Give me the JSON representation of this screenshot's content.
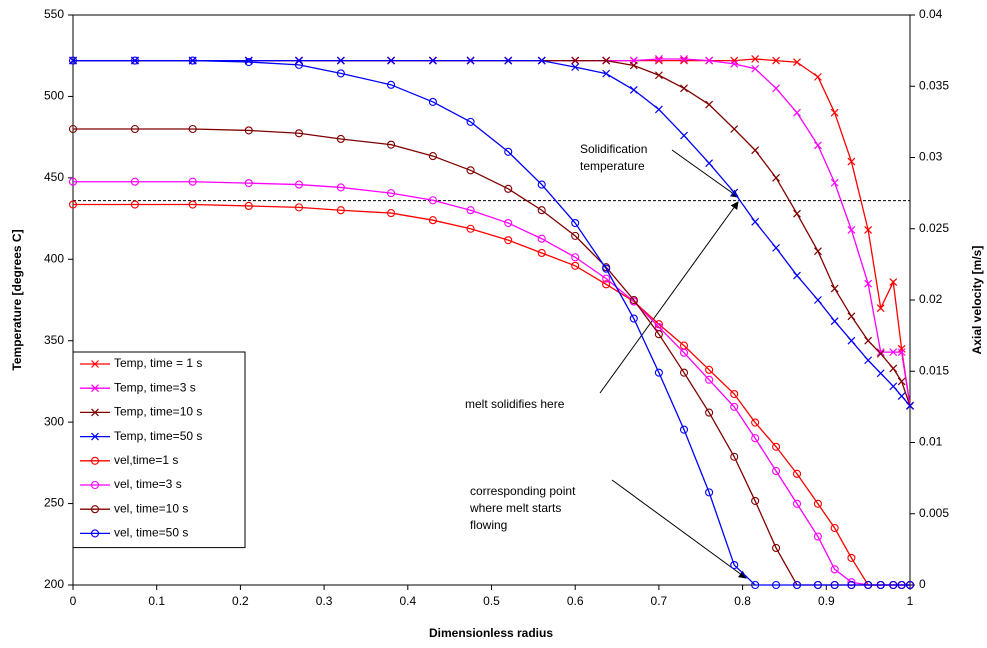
{
  "chart_data": {
    "type": "line",
    "xlabel": "Dimensionless radius",
    "ylabel": "Temperature [degrees C]",
    "y2label": "Axial velocity [m/s]",
    "x": [
      0,
      0.074,
      0.143,
      0.21,
      0.27,
      0.32,
      0.38,
      0.43,
      0.475,
      0.52,
      0.56,
      0.6,
      0.637,
      0.67,
      0.7,
      0.73,
      0.76,
      0.79,
      0.815,
      0.84,
      0.865,
      0.89,
      0.91,
      0.93,
      0.95,
      0.965,
      0.98,
      0.99,
      1.0
    ],
    "xlim": [
      0,
      1
    ],
    "xticks": [
      0,
      0.1,
      0.2,
      0.3,
      0.4,
      0.5,
      0.6,
      0.7,
      0.8,
      0.9,
      1
    ],
    "ylim": [
      200,
      550
    ],
    "yticks": [
      200,
      250,
      300,
      350,
      400,
      450,
      500,
      550
    ],
    "y2lim": [
      0,
      0.04
    ],
    "y2ticks": [
      0,
      0.005,
      0.01,
      0.015,
      0.02,
      0.025,
      0.03,
      0.035,
      0.04
    ],
    "solidification_temperature": 436,
    "series": [
      {
        "name": "Temp, time = 1 s",
        "color": "#ff0000",
        "marker": "x",
        "values": [
          522,
          522,
          522,
          522,
          522,
          522,
          522,
          522,
          522,
          522,
          522,
          522,
          522,
          522,
          522,
          522,
          522,
          522,
          523,
          522,
          521,
          512,
          490,
          460,
          418,
          370,
          386,
          345,
          310
        ]
      },
      {
        "name": "Temp, time=3 s",
        "color": "#ff00ff",
        "marker": "x",
        "values": [
          522,
          522,
          522,
          522,
          522,
          522,
          522,
          522,
          522,
          522,
          522,
          522,
          522,
          522,
          523,
          523,
          522,
          520,
          517,
          505,
          490,
          470,
          447,
          418,
          385,
          343,
          343,
          343,
          310
        ]
      },
      {
        "name": "Temp, time=10 s",
        "color": "#800000",
        "marker": "x",
        "values": [
          522,
          522,
          522,
          522,
          522,
          522,
          522,
          522,
          522,
          522,
          522,
          522,
          522,
          519,
          513,
          505,
          495,
          480,
          467,
          450,
          428,
          405,
          382,
          365,
          350,
          342,
          333,
          325,
          310
        ]
      },
      {
        "name": "Temp, time=50 s",
        "color": "#0000ff",
        "marker": "x",
        "values": [
          522,
          522,
          522,
          522,
          522,
          522,
          522,
          522,
          522,
          522,
          522,
          518,
          514,
          504,
          492,
          476,
          459,
          441,
          423,
          407,
          390,
          375,
          362,
          350,
          338,
          330,
          322,
          316,
          310
        ]
      },
      {
        "name": "vel,time=1 s",
        "color": "#ff0000",
        "marker": "o",
        "axis": "y2",
        "values": [
          0.0267,
          0.0267,
          0.0267,
          0.0266,
          0.0265,
          0.0263,
          0.0261,
          0.0256,
          0.025,
          0.0242,
          0.0233,
          0.0224,
          0.0211,
          0.0199,
          0.0183,
          0.0168,
          0.0151,
          0.0134,
          0.0114,
          0.0097,
          0.0078,
          0.0057,
          0.004,
          0.0019,
          0,
          0,
          0,
          0,
          0
        ]
      },
      {
        "name": "vel, time=3 s",
        "color": "#ff00ff",
        "marker": "o",
        "axis": "y2",
        "values": [
          0.0283,
          0.0283,
          0.0283,
          0.0282,
          0.0281,
          0.0279,
          0.0275,
          0.027,
          0.0263,
          0.0254,
          0.0243,
          0.023,
          0.0215,
          0.0199,
          0.0181,
          0.0163,
          0.0144,
          0.0125,
          0.0103,
          0.008,
          0.0057,
          0.0034,
          0.0011,
          0.0002,
          0,
          0,
          0,
          0,
          0
        ]
      },
      {
        "name": "vel, time=10 s",
        "color": "#800000",
        "marker": "o",
        "axis": "y2",
        "values": [
          0.032,
          0.032,
          0.032,
          0.0319,
          0.0317,
          0.0313,
          0.0309,
          0.0301,
          0.0291,
          0.0278,
          0.0263,
          0.0245,
          0.0223,
          0.02,
          0.0176,
          0.0149,
          0.0121,
          0.009,
          0.0059,
          0.0026,
          0,
          0,
          0,
          0,
          0,
          0,
          0,
          0,
          0
        ]
      },
      {
        "name": "vel, time=50 s",
        "color": "#0000ff",
        "marker": "o",
        "axis": "y2",
        "values": [
          0.0368,
          0.0368,
          0.0368,
          0.0367,
          0.0365,
          0.0359,
          0.0351,
          0.0339,
          0.0325,
          0.0304,
          0.0281,
          0.0254,
          0.0222,
          0.0187,
          0.0149,
          0.0109,
          0.0065,
          0.0014,
          0,
          0,
          0,
          0,
          0,
          0,
          0,
          0,
          0,
          0,
          0
        ]
      }
    ],
    "annotations": [
      {
        "lines": [
          "Solidification",
          "temperature"
        ]
      },
      {
        "lines": [
          "melt solidifies here"
        ]
      },
      {
        "lines": [
          "corresponding point",
          "where melt starts",
          "flowing"
        ]
      }
    ],
    "legend": "lower left"
  }
}
